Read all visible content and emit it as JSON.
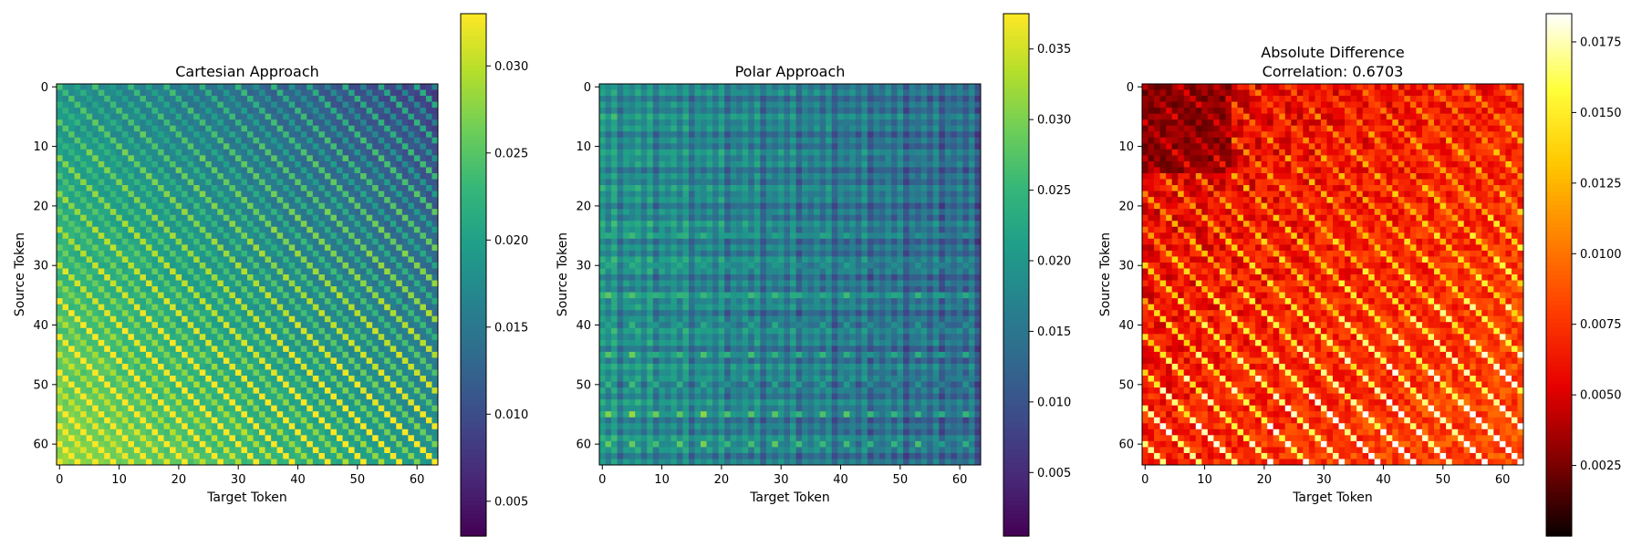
{
  "chart_data": [
    {
      "type": "heatmap",
      "title": "Cartesian Approach",
      "xlabel": "Target Token",
      "ylabel": "Source Token",
      "grid_size": 64,
      "colormap": "viridis",
      "vmin": 0.003,
      "vmax": 0.033,
      "x_ticks": [
        0,
        10,
        20,
        30,
        40,
        50,
        60
      ],
      "y_ticks": [
        0,
        10,
        20,
        30,
        40,
        50,
        60
      ],
      "colorbar_ticks": [
        0.005,
        0.01,
        0.015,
        0.02,
        0.025,
        0.03
      ],
      "colorbar_tick_labels": [
        "0.005",
        "0.010",
        "0.015",
        "0.020",
        "0.025",
        "0.030"
      ],
      "pattern": "diagonal stripes; values cluster near 0.018; stripes brighter toward bottom-right, darker toward top-right"
    },
    {
      "type": "heatmap",
      "title": "Polar Approach",
      "xlabel": "Target Token",
      "ylabel": "Source Token",
      "grid_size": 64,
      "colormap": "viridis",
      "vmin": 0.0005,
      "vmax": 0.0375,
      "x_ticks": [
        0,
        10,
        20,
        30,
        40,
        50,
        60
      ],
      "y_ticks": [
        0,
        10,
        20,
        30,
        40,
        50,
        60
      ],
      "colorbar_ticks": [
        0.005,
        0.01,
        0.015,
        0.02,
        0.025,
        0.03,
        0.035
      ],
      "colorbar_tick_labels": [
        "0.005",
        "0.010",
        "0.015",
        "0.020",
        "0.025",
        "0.030",
        "0.035"
      ],
      "pattern": "vertical/horizontal banding; mostly ~0.02; darker columns toward right; bright spots in lower rows"
    },
    {
      "type": "heatmap",
      "title": "Absolute Difference",
      "subtitle": "Correlation: 0.6703",
      "xlabel": "Target Token",
      "ylabel": "Source Token",
      "grid_size": 64,
      "colormap": "hot",
      "vmin": 0.0,
      "vmax": 0.0185,
      "x_ticks": [
        0,
        10,
        20,
        30,
        40,
        50,
        60
      ],
      "y_ticks": [
        0,
        10,
        20,
        30,
        40,
        50,
        60
      ],
      "colorbar_ticks": [
        0.0025,
        0.005,
        0.0075,
        0.01,
        0.0125,
        0.015,
        0.0175
      ],
      "colorbar_tick_labels": [
        "0.0025",
        "0.0050",
        "0.0075",
        "0.0100",
        "0.0125",
        "0.0150",
        "0.0175"
      ],
      "pattern": "mostly red (~0.005); darker top-left; bright diagonal streaks increasing toward bottom-right"
    }
  ]
}
